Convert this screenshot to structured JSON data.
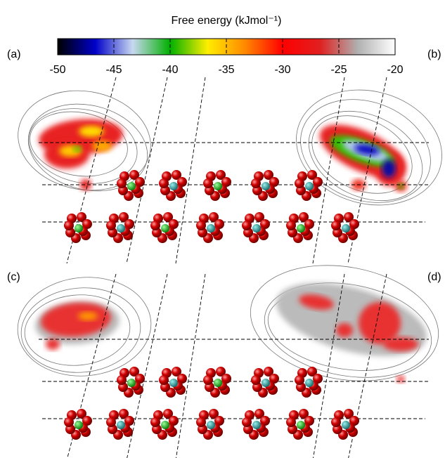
{
  "colorbar": {
    "title": "Free energy (kJmol⁻¹)",
    "range": [
      -50,
      -20
    ],
    "ticks": [
      -50,
      -45,
      -40,
      -35,
      -30,
      -25,
      -20
    ],
    "colors": [
      "#000000",
      "#0000c8",
      "#c8d8f0",
      "#00b000",
      "#ffee00",
      "#ff8800",
      "#ff0000",
      "#e02020",
      "#b0b0b0",
      "#ffffff"
    ]
  },
  "panels": [
    {
      "label": "(a)"
    },
    {
      "label": "(b)"
    },
    {
      "label": "(c)"
    },
    {
      "label": "(d)"
    }
  ]
}
